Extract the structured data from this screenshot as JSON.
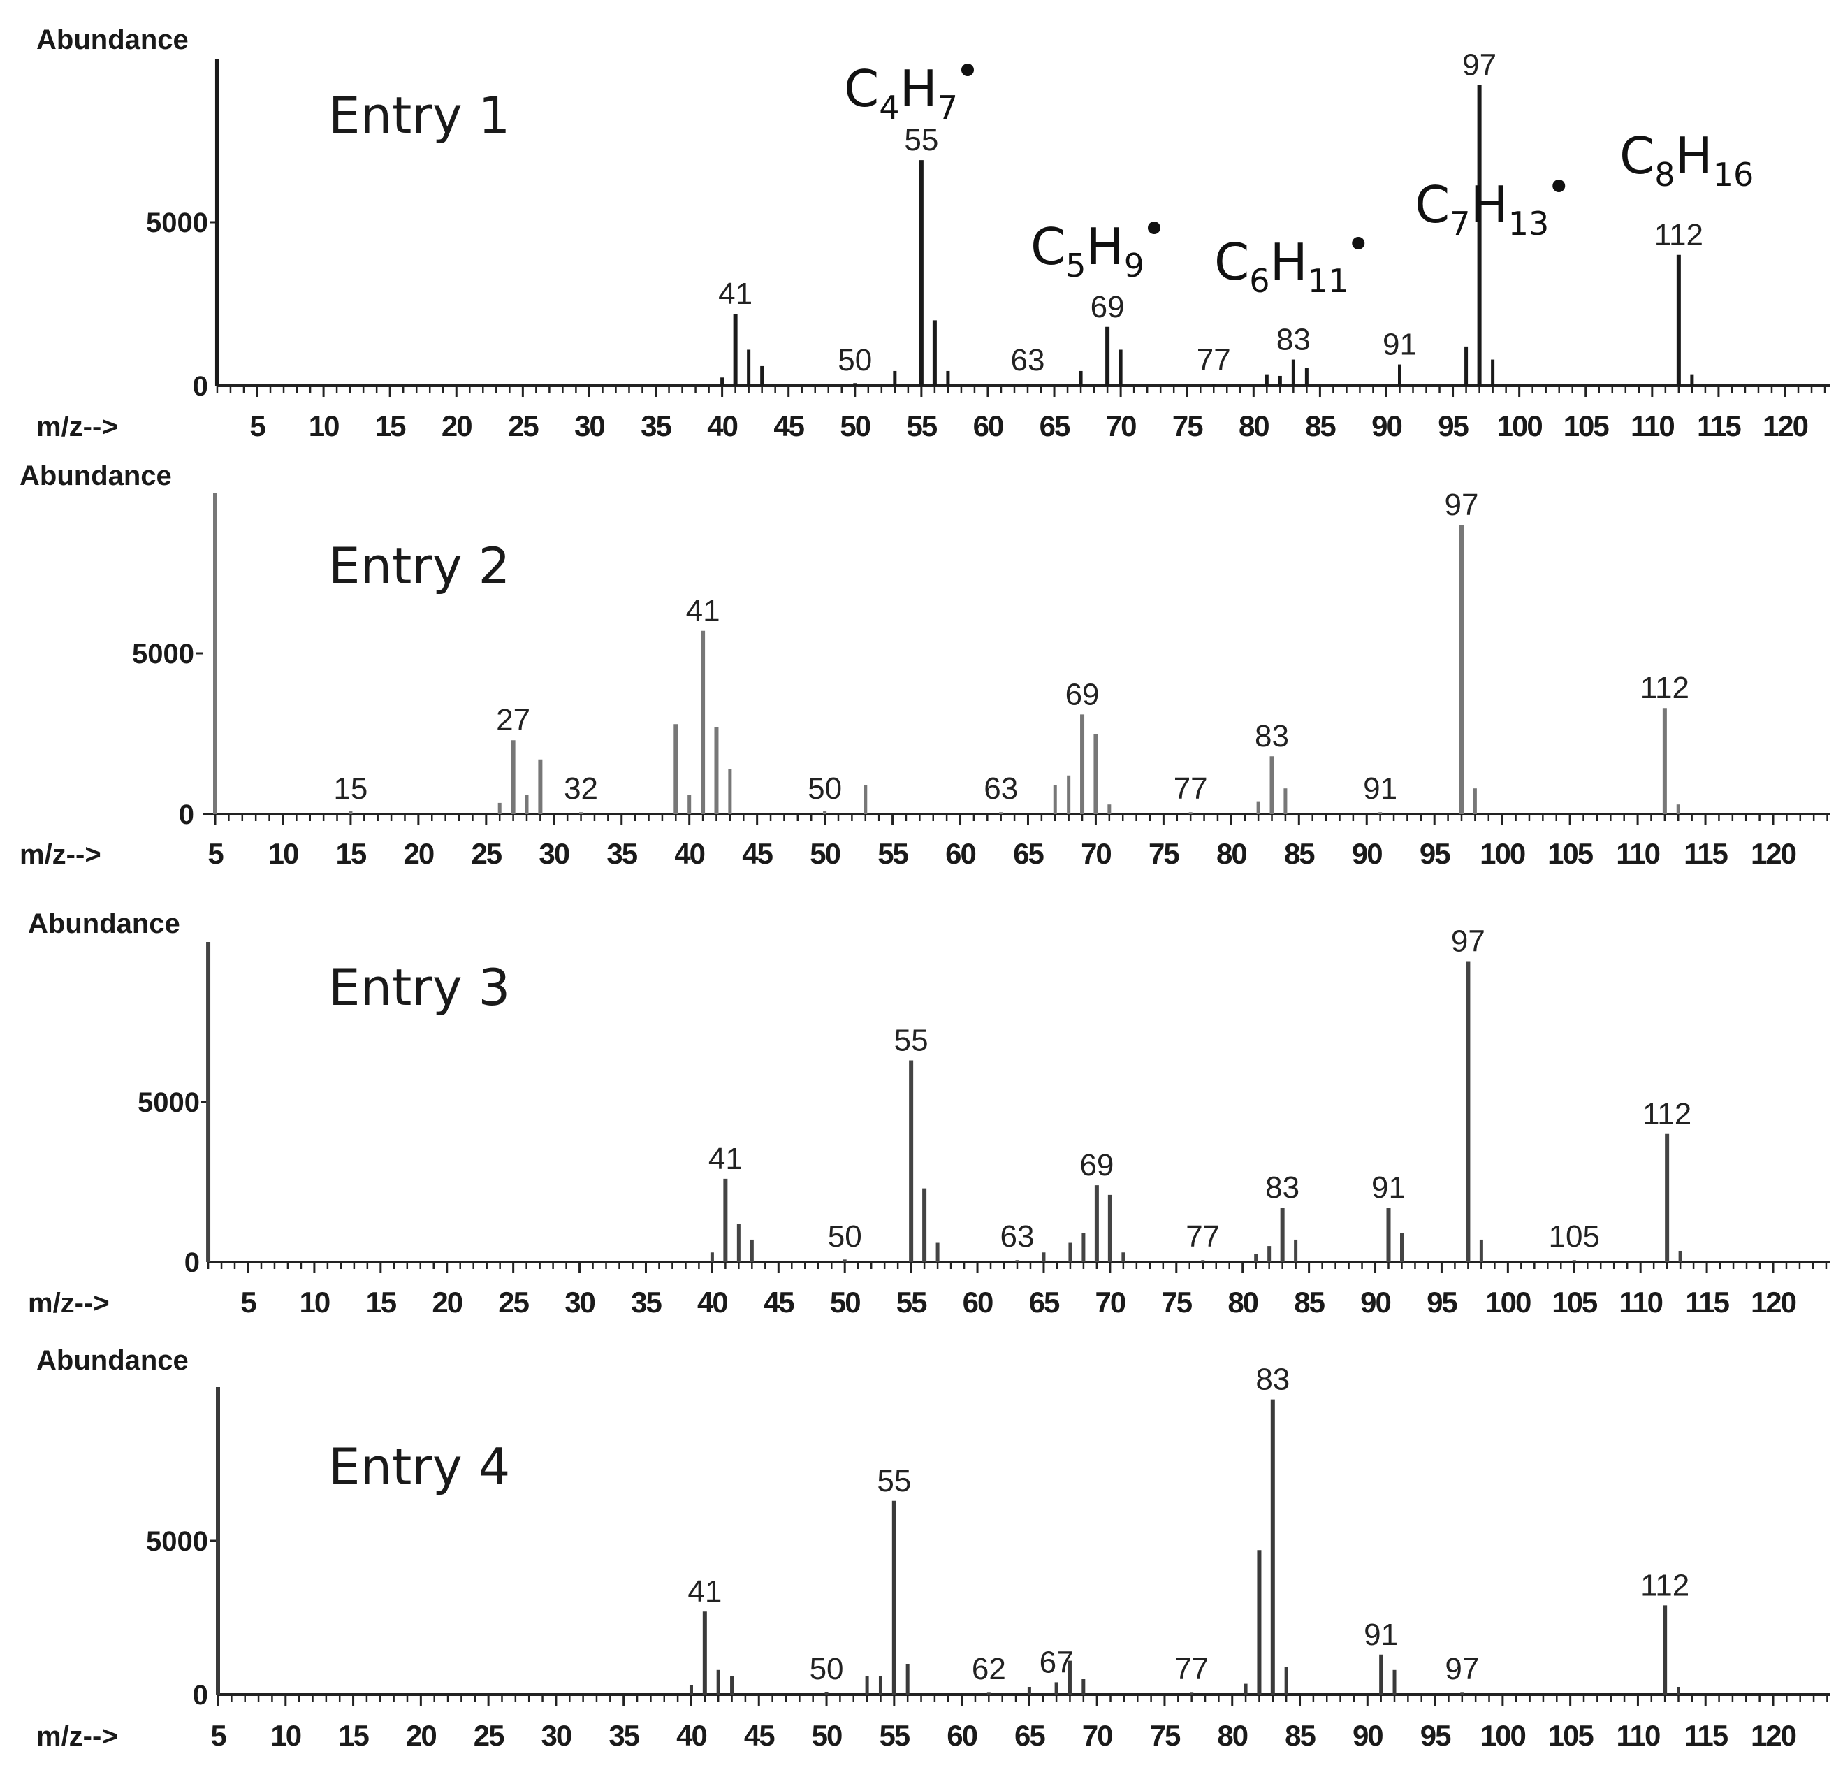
{
  "chart_data": [
    {
      "type": "bar",
      "title": "Entry 1",
      "ylabel": "Abundance",
      "xlabel": "m/z-->",
      "yticks": [
        "0",
        "5000"
      ],
      "xticks": [
        "5",
        "10",
        "15",
        "20",
        "25",
        "30",
        "35",
        "40",
        "45",
        "50",
        "55",
        "60",
        "65",
        "70",
        "75",
        "80",
        "85",
        "90",
        "95",
        "100",
        "105",
        "110",
        "115",
        "120"
      ],
      "xlim": [
        2,
        123
      ],
      "ylim": [
        0,
        10000
      ],
      "color": "#1a1a1a",
      "peaks": [
        {
          "mz": 2,
          "abundance": 10000
        },
        {
          "mz": 40,
          "abundance": 250
        },
        {
          "mz": 41,
          "abundance": 2200,
          "label": "41"
        },
        {
          "mz": 42,
          "abundance": 1100
        },
        {
          "mz": 43,
          "abundance": 600
        },
        {
          "mz": 50,
          "abundance": 80,
          "label": "50"
        },
        {
          "mz": 53,
          "abundance": 450
        },
        {
          "mz": 55,
          "abundance": 6900,
          "label": "55"
        },
        {
          "mz": 56,
          "abundance": 2000
        },
        {
          "mz": 57,
          "abundance": 450
        },
        {
          "mz": 63,
          "abundance": 60,
          "label": "63"
        },
        {
          "mz": 67,
          "abundance": 450
        },
        {
          "mz": 69,
          "abundance": 1800,
          "label": "69"
        },
        {
          "mz": 70,
          "abundance": 1100
        },
        {
          "mz": 77,
          "abundance": 60,
          "label": "77"
        },
        {
          "mz": 81,
          "abundance": 350
        },
        {
          "mz": 82,
          "abundance": 300
        },
        {
          "mz": 83,
          "abundance": 800,
          "label": "83"
        },
        {
          "mz": 84,
          "abundance": 550
        },
        {
          "mz": 91,
          "abundance": 650,
          "label": "91"
        },
        {
          "mz": 96,
          "abundance": 1200
        },
        {
          "mz": 97,
          "abundance": 9200,
          "label": "97"
        },
        {
          "mz": 98,
          "abundance": 800
        },
        {
          "mz": 112,
          "abundance": 4000,
          "label": "112"
        },
        {
          "mz": 113,
          "abundance": 350
        }
      ],
      "annotations": [
        {
          "base": "C",
          "n1": "4",
          "h": "H",
          "n2": "7",
          "radical": true
        },
        {
          "base": "C",
          "n1": "5",
          "h": "H",
          "n2": "9",
          "radical": true
        },
        {
          "base": "C",
          "n1": "6",
          "h": "H",
          "n2": "11",
          "radical": true
        },
        {
          "base": "C",
          "n1": "7",
          "h": "H",
          "n2": "13",
          "radical": true
        },
        {
          "base": "C",
          "n1": "8",
          "h": "H",
          "n2": "16",
          "radical": false
        }
      ]
    },
    {
      "type": "bar",
      "title": "Entry 2",
      "ylabel": "Abundance",
      "xlabel": "m/z-->",
      "yticks": [
        "0",
        "5000"
      ],
      "xticks": [
        "5",
        "10",
        "15",
        "20",
        "25",
        "30",
        "35",
        "40",
        "45",
        "50",
        "55",
        "60",
        "65",
        "70",
        "75",
        "80",
        "85",
        "90",
        "95",
        "100",
        "105",
        "110",
        "115",
        "120"
      ],
      "xlim": [
        5,
        125
      ],
      "ylim": [
        0,
        10000
      ],
      "color": "#777777",
      "peaks": [
        {
          "mz": 5,
          "abundance": 10000
        },
        {
          "mz": 15,
          "abundance": 100,
          "label": "15"
        },
        {
          "mz": 26,
          "abundance": 350
        },
        {
          "mz": 27,
          "abundance": 2300,
          "label": "27"
        },
        {
          "mz": 28,
          "abundance": 600
        },
        {
          "mz": 29,
          "abundance": 1700
        },
        {
          "mz": 32,
          "abundance": 60,
          "label": "32"
        },
        {
          "mz": 39,
          "abundance": 2800
        },
        {
          "mz": 40,
          "abundance": 600
        },
        {
          "mz": 41,
          "abundance": 5700,
          "label": "41"
        },
        {
          "mz": 42,
          "abundance": 2700
        },
        {
          "mz": 43,
          "abundance": 1400
        },
        {
          "mz": 50,
          "abundance": 100,
          "label": "50"
        },
        {
          "mz": 53,
          "abundance": 900
        },
        {
          "mz": 63,
          "abundance": 60,
          "label": "63"
        },
        {
          "mz": 67,
          "abundance": 900
        },
        {
          "mz": 68,
          "abundance": 1200
        },
        {
          "mz": 69,
          "abundance": 3100,
          "label": "69"
        },
        {
          "mz": 70,
          "abundance": 2500
        },
        {
          "mz": 71,
          "abundance": 300
        },
        {
          "mz": 77,
          "abundance": 60,
          "label": "77"
        },
        {
          "mz": 82,
          "abundance": 400
        },
        {
          "mz": 83,
          "abundance": 1800,
          "label": "83"
        },
        {
          "mz": 84,
          "abundance": 800
        },
        {
          "mz": 91,
          "abundance": 60,
          "label": "91"
        },
        {
          "mz": 97,
          "abundance": 9000,
          "label": "97"
        },
        {
          "mz": 98,
          "abundance": 800
        },
        {
          "mz": 112,
          "abundance": 3300,
          "label": "112"
        },
        {
          "mz": 113,
          "abundance": 300
        }
      ]
    },
    {
      "type": "bar",
      "title": "Entry 3",
      "ylabel": "Abundance",
      "xlabel": "m/z-->",
      "yticks": [
        "0",
        "5000"
      ],
      "xticks": [
        "5",
        "10",
        "15",
        "20",
        "25",
        "30",
        "35",
        "40",
        "45",
        "50",
        "55",
        "60",
        "65",
        "70",
        "75",
        "80",
        "85",
        "90",
        "95",
        "100",
        "105",
        "110",
        "115",
        "120"
      ],
      "xlim": [
        2,
        123
      ],
      "ylim": [
        0,
        10000
      ],
      "color": "#444444",
      "peaks": [
        {
          "mz": 2,
          "abundance": 10000
        },
        {
          "mz": 40,
          "abundance": 300
        },
        {
          "mz": 41,
          "abundance": 2600,
          "label": "41"
        },
        {
          "mz": 42,
          "abundance": 1200
        },
        {
          "mz": 43,
          "abundance": 700
        },
        {
          "mz": 50,
          "abundance": 80,
          "label": "50"
        },
        {
          "mz": 55,
          "abundance": 6300,
          "label": "55"
        },
        {
          "mz": 56,
          "abundance": 2300
        },
        {
          "mz": 57,
          "abundance": 600
        },
        {
          "mz": 63,
          "abundance": 60,
          "label": "63"
        },
        {
          "mz": 65,
          "abundance": 300
        },
        {
          "mz": 67,
          "abundance": 600
        },
        {
          "mz": 68,
          "abundance": 900
        },
        {
          "mz": 69,
          "abundance": 2400,
          "label": "69"
        },
        {
          "mz": 70,
          "abundance": 2100
        },
        {
          "mz": 71,
          "abundance": 300
        },
        {
          "mz": 77,
          "abundance": 60,
          "label": "77"
        },
        {
          "mz": 81,
          "abundance": 250
        },
        {
          "mz": 82,
          "abundance": 500
        },
        {
          "mz": 83,
          "abundance": 1700,
          "label": "83"
        },
        {
          "mz": 84,
          "abundance": 700
        },
        {
          "mz": 91,
          "abundance": 1700,
          "label": "91"
        },
        {
          "mz": 92,
          "abundance": 900
        },
        {
          "mz": 97,
          "abundance": 9400,
          "label": "97"
        },
        {
          "mz": 98,
          "abundance": 700
        },
        {
          "mz": 105,
          "abundance": 60,
          "label": "105"
        },
        {
          "mz": 112,
          "abundance": 4000,
          "label": "112"
        },
        {
          "mz": 113,
          "abundance": 350
        }
      ]
    },
    {
      "type": "bar",
      "title": "Entry 4",
      "ylabel": "Abundance",
      "xlabel": "m/z-->",
      "yticks": [
        "0",
        "5000"
      ],
      "xticks": [
        "5",
        "10",
        "15",
        "20",
        "25",
        "30",
        "35",
        "40",
        "45",
        "50",
        "55",
        "60",
        "65",
        "70",
        "75",
        "80",
        "85",
        "90",
        "95",
        "100",
        "105",
        "110",
        "115",
        "120"
      ],
      "xlim": [
        5,
        125
      ],
      "ylim": [
        0,
        10000
      ],
      "color": "#3a3a3a",
      "peaks": [
        {
          "mz": 5,
          "abundance": 10000
        },
        {
          "mz": 40,
          "abundance": 300
        },
        {
          "mz": 41,
          "abundance": 2700,
          "label": "41"
        },
        {
          "mz": 42,
          "abundance": 800
        },
        {
          "mz": 43,
          "abundance": 600
        },
        {
          "mz": 50,
          "abundance": 80,
          "label": "50"
        },
        {
          "mz": 53,
          "abundance": 600
        },
        {
          "mz": 54,
          "abundance": 600
        },
        {
          "mz": 55,
          "abundance": 6300,
          "label": "55"
        },
        {
          "mz": 56,
          "abundance": 1000
        },
        {
          "mz": 62,
          "abundance": 60,
          "label": "62"
        },
        {
          "mz": 65,
          "abundance": 250
        },
        {
          "mz": 67,
          "abundance": 400,
          "label": "67"
        },
        {
          "mz": 68,
          "abundance": 1100
        },
        {
          "mz": 69,
          "abundance": 500
        },
        {
          "mz": 77,
          "abundance": 60,
          "label": "77"
        },
        {
          "mz": 81,
          "abundance": 350
        },
        {
          "mz": 82,
          "abundance": 4700
        },
        {
          "mz": 83,
          "abundance": 9600,
          "label": "83"
        },
        {
          "mz": 84,
          "abundance": 900
        },
        {
          "mz": 91,
          "abundance": 1300,
          "label": "91"
        },
        {
          "mz": 92,
          "abundance": 800
        },
        {
          "mz": 97,
          "abundance": 60,
          "label": "97"
        },
        {
          "mz": 112,
          "abundance": 2900,
          "label": "112"
        },
        {
          "mz": 113,
          "abundance": 250
        }
      ]
    }
  ]
}
